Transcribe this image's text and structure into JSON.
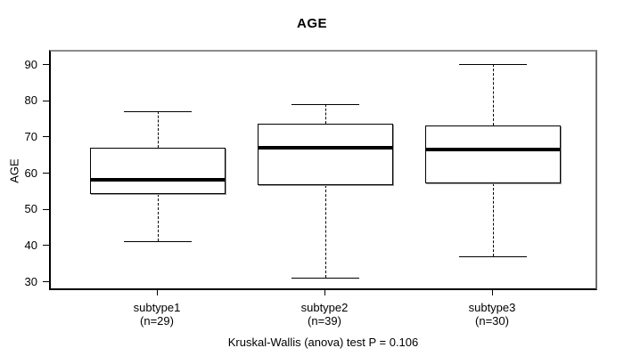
{
  "title": "AGE",
  "y_axis": {
    "label": "AGE",
    "ticks": [
      90,
      80,
      70,
      60,
      50,
      40,
      30
    ]
  },
  "caption": "Kruskal-Wallis (anova) test P = 0.106",
  "colors": {
    "background": "#ffffff",
    "line": "#000000",
    "frame_border": "#8c8c8c",
    "text": "#000000"
  },
  "chart_data": {
    "type": "boxplot",
    "title": "AGE",
    "xlabel": "",
    "ylabel": "AGE",
    "ylim": [
      28,
      93
    ],
    "yticks": [
      30,
      40,
      50,
      60,
      70,
      80,
      90
    ],
    "grid": false,
    "legend": "none",
    "categories": [
      "subtype1",
      "subtype2",
      "subtype3"
    ],
    "category_sublabels": [
      "(n=29)",
      "(n=39)",
      "(n=30)"
    ],
    "series": [
      {
        "name": "subtype1",
        "n": 29,
        "whisker_low": 41,
        "q1": 54,
        "median": 58,
        "q3": 67,
        "whisker_high": 77
      },
      {
        "name": "subtype2",
        "n": 39,
        "whisker_low": 31,
        "q1": 56.5,
        "median": 67,
        "q3": 73.5,
        "whisker_high": 79
      },
      {
        "name": "subtype3",
        "n": 30,
        "whisker_low": 37,
        "q1": 57,
        "median": 66.5,
        "q3": 73,
        "whisker_high": 90
      }
    ],
    "annotation": "Kruskal-Wallis (anova) test P = 0.106"
  }
}
